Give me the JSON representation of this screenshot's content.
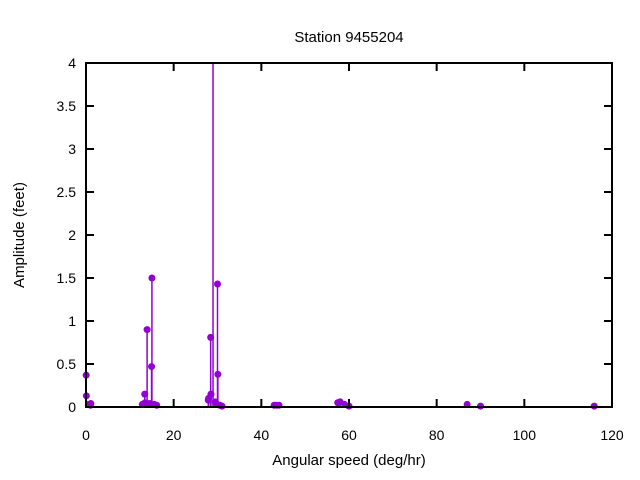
{
  "chart_data": {
    "type": "scatter",
    "style": "stem-plot (impulses with filled circle markers, gnuplot-style boxed axes with mirrored inward ticks)",
    "title": "Station 9455204",
    "xlabel": "Angular speed (deg/hr)",
    "ylabel": "Amplitude (feet)",
    "xlim": [
      0,
      120
    ],
    "ylim": [
      0,
      4
    ],
    "xticks": [
      0,
      20,
      40,
      60,
      80,
      100,
      120
    ],
    "yticks": [
      0,
      0.5,
      1,
      1.5,
      2,
      2.5,
      3,
      3.5,
      4
    ],
    "grid": false,
    "legend": "none",
    "marker_color": "#9400d3",
    "axis_color": "#000000",
    "background_color": "#ffffff",
    "points": [
      {
        "x": 0.04,
        "y": 0.37
      },
      {
        "x": 0.08,
        "y": 0.13
      },
      {
        "x": 0.54,
        "y": 0.03
      },
      {
        "x": 1.02,
        "y": 0.02
      },
      {
        "x": 1.1,
        "y": 0.04
      },
      {
        "x": 12.85,
        "y": 0.03
      },
      {
        "x": 13.4,
        "y": 0.15
      },
      {
        "x": 13.47,
        "y": 0.05
      },
      {
        "x": 13.94,
        "y": 0.9
      },
      {
        "x": 14.49,
        "y": 0.04
      },
      {
        "x": 14.96,
        "y": 0.47
      },
      {
        "x": 15.04,
        "y": 1.5
      },
      {
        "x": 15.58,
        "y": 0.03
      },
      {
        "x": 16.14,
        "y": 0.02
      },
      {
        "x": 27.9,
        "y": 0.08
      },
      {
        "x": 27.97,
        "y": 0.1
      },
      {
        "x": 28.44,
        "y": 0.81
      },
      {
        "x": 28.51,
        "y": 0.15
      },
      {
        "x": 28.98,
        "y": 4.5,
        "clipped_at_ymax": true,
        "note": "stem runs past the top border; marker not visible, true amplitude off-scale (> 4)"
      },
      {
        "x": 29.46,
        "y": 0.06
      },
      {
        "x": 29.53,
        "y": 0.05
      },
      {
        "x": 29.96,
        "y": 0.03
      },
      {
        "x": 30.0,
        "y": 1.43
      },
      {
        "x": 30.08,
        "y": 0.38
      },
      {
        "x": 30.54,
        "y": 0.02
      },
      {
        "x": 31.02,
        "y": 0.01
      },
      {
        "x": 42.93,
        "y": 0.02
      },
      {
        "x": 43.48,
        "y": 0.02
      },
      {
        "x": 44.03,
        "y": 0.02
      },
      {
        "x": 57.42,
        "y": 0.05
      },
      {
        "x": 57.97,
        "y": 0.06
      },
      {
        "x": 58.98,
        "y": 0.03
      },
      {
        "x": 60.0,
        "y": 0.01
      },
      {
        "x": 86.95,
        "y": 0.03
      },
      {
        "x": 90.0,
        "y": 0.01
      },
      {
        "x": 115.94,
        "y": 0.01
      }
    ]
  }
}
